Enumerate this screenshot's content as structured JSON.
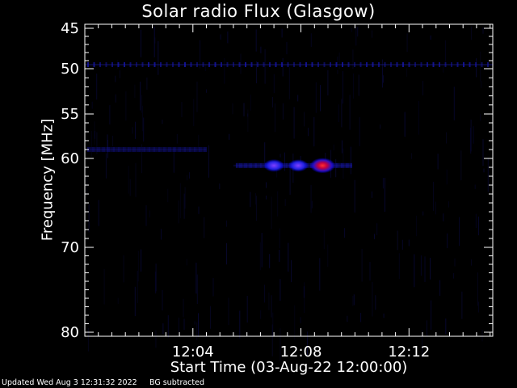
{
  "chart_data": {
    "type": "heatmap",
    "title": "Solar radio Flux (Glasgow)",
    "xlabel": "Start Time (03-Aug-22 12:00:00)",
    "ylabel": "Frequency [MHz]",
    "xlim_minutes": [
      0,
      15.1
    ],
    "x_ticks": [
      {
        "minute": 4,
        "label": "12:04"
      },
      {
        "minute": 8,
        "label": "12:08"
      },
      {
        "minute": 12,
        "label": "12:12"
      }
    ],
    "ylim_mhz": [
      45,
      80
    ],
    "y_ticks": [
      45,
      50,
      55,
      60,
      70,
      80
    ],
    "y_scale": "nonlinear (60-80 MHz compressed)",
    "features": [
      {
        "type": "band",
        "freq_mhz": 49.5,
        "start_min": 0,
        "end_min": 15.1,
        "intensity": 0.55
      },
      {
        "type": "band",
        "freq_mhz": 59.0,
        "start_min": 0,
        "end_min": 4.5,
        "intensity": 0.3
      },
      {
        "type": "band",
        "freq_mhz": 60.8,
        "start_min": 5.5,
        "end_min": 9.9,
        "intensity": 0.45
      },
      {
        "type": "blob",
        "freq_mhz": 60.8,
        "minute": 8.8,
        "intensity": 1.0
      },
      {
        "type": "blob",
        "freq_mhz": 60.8,
        "minute": 7.0,
        "intensity": 0.65
      },
      {
        "type": "blob",
        "freq_mhz": 60.8,
        "minute": 7.9,
        "intensity": 0.6
      }
    ]
  },
  "footer": {
    "updated": "Updated Wed Aug  3 12:31:32 2022",
    "note": "BG subtracted"
  }
}
